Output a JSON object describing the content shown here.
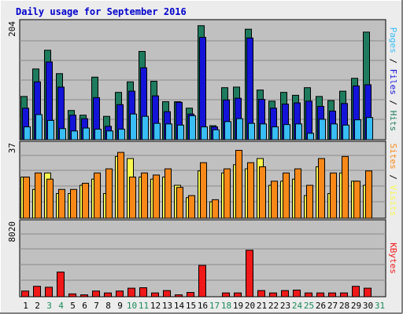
{
  "title": "Daily usage for September 2016",
  "colors": {
    "background": "#ececec",
    "panel": "#c0c0c0",
    "title_text": "#0000cc",
    "hits": "#1e7b5e",
    "files": "#1414d8",
    "pages": "#38bdf5",
    "visits": "#f8f850",
    "sites": "#f88818",
    "kbytes": "#f01818",
    "weekend_day": "#1a8a5a",
    "weekday": "#000000"
  },
  "chart_data": [
    {
      "type": "bar",
      "title": "",
      "xlabel": "",
      "ylabel": "Pages / Files / Hits",
      "ymax_label": "204",
      "ylim": [
        0,
        204
      ],
      "categories": [
        "1",
        "2",
        "3",
        "4",
        "5",
        "6",
        "7",
        "8",
        "9",
        "10",
        "11",
        "12",
        "13",
        "14",
        "15",
        "16",
        "17",
        "18",
        "19",
        "20",
        "21",
        "22",
        "23",
        "24",
        "25",
        "26",
        "27",
        "28",
        "29",
        "30",
        "31"
      ],
      "series": [
        {
          "name": "Hits",
          "color": "#1e7b5e",
          "values": [
            74,
            121,
            153,
            113,
            50,
            42,
            107,
            40,
            81,
            99,
            151,
            100,
            65,
            65,
            54,
            195,
            24,
            89,
            90,
            189,
            85,
            66,
            81,
            76,
            89,
            74,
            67,
            83,
            105,
            184,
            0
          ]
        },
        {
          "name": "Files",
          "color": "#1414d8",
          "values": [
            54,
            99,
            133,
            90,
            42,
            36,
            72,
            23,
            60,
            83,
            123,
            75,
            48,
            64,
            44,
            175,
            22,
            68,
            71,
            174,
            69,
            54,
            61,
            63,
            66,
            57,
            49,
            62,
            92,
            94,
            0
          ]
        },
        {
          "name": "Pages",
          "color": "#38bdf5",
          "values": [
            22,
            43,
            33,
            19,
            15,
            20,
            18,
            15,
            18,
            44,
            40,
            28,
            27,
            25,
            41,
            22,
            17,
            31,
            36,
            28,
            27,
            22,
            26,
            27,
            11,
            35,
            27,
            25,
            34,
            38,
            0
          ]
        }
      ]
    },
    {
      "type": "bar",
      "title": "",
      "xlabel": "",
      "ylabel": "Sites / Visits",
      "ymax_label": "37",
      "ylim": [
        0,
        37
      ],
      "categories": [
        "1",
        "2",
        "3",
        "4",
        "5",
        "6",
        "7",
        "8",
        "9",
        "10",
        "11",
        "12",
        "13",
        "14",
        "15",
        "16",
        "17",
        "18",
        "19",
        "20",
        "21",
        "22",
        "23",
        "24",
        "25",
        "26",
        "27",
        "28",
        "29",
        "30",
        "31"
      ],
      "series": [
        {
          "name": "Visits",
          "color": "#f8f850",
          "values": [
            20,
            14,
            22,
            12,
            12,
            16,
            19,
            12,
            30,
            29,
            20,
            19,
            20,
            16,
            10,
            23,
            8,
            22,
            26,
            24,
            29,
            16,
            18,
            19,
            11,
            25,
            12,
            22,
            18,
            16,
            0
          ]
        },
        {
          "name": "Sites",
          "color": "#f88818",
          "values": [
            20,
            22,
            19,
            14,
            14,
            17,
            22,
            24,
            32,
            20,
            22,
            21,
            24,
            15,
            11,
            27,
            9,
            24,
            33,
            27,
            25,
            18,
            22,
            24,
            16,
            29,
            22,
            30,
            18,
            23,
            0
          ]
        }
      ]
    },
    {
      "type": "bar",
      "title": "",
      "xlabel": "",
      "ylabel": "KBytes",
      "ymax_label": "8020",
      "ylim": [
        0,
        8020
      ],
      "categories": [
        "1",
        "2",
        "3",
        "4",
        "5",
        "6",
        "7",
        "8",
        "9",
        "10",
        "11",
        "12",
        "13",
        "14",
        "15",
        "16",
        "17",
        "18",
        "19",
        "20",
        "21",
        "22",
        "23",
        "24",
        "25",
        "26",
        "27",
        "28",
        "29",
        "30",
        "31"
      ],
      "series": [
        {
          "name": "KBytes",
          "color": "#f01818",
          "values": [
            600,
            1100,
            1000,
            2600,
            300,
            200,
            600,
            400,
            600,
            900,
            950,
            400,
            650,
            200,
            450,
            3300,
            0,
            400,
            400,
            4900,
            650,
            400,
            650,
            700,
            400,
            400,
            400,
            400,
            1100,
            900,
            0
          ]
        }
      ]
    }
  ],
  "day_labels": [
    "1",
    "2",
    "3",
    "4",
    "5",
    "6",
    "7",
    "8",
    "9",
    "10",
    "11",
    "12",
    "13",
    "14",
    "15",
    "16",
    "17",
    "18",
    "19",
    "20",
    "21",
    "22",
    "23",
    "24",
    "25",
    "26",
    "27",
    "28",
    "29",
    "30",
    "31"
  ],
  "weekend_days": [
    3,
    4,
    10,
    11,
    17,
    18,
    24,
    25,
    31
  ],
  "right_labels": {
    "top": [
      {
        "text": "Pages",
        "color": "#38bdf5"
      },
      {
        "text": " / ",
        "color": "#000000"
      },
      {
        "text": "Files",
        "color": "#1414d8"
      },
      {
        "text": " / ",
        "color": "#000000"
      },
      {
        "text": "Hits",
        "color": "#1e7b5e"
      }
    ],
    "middle": [
      {
        "text": "Sites",
        "color": "#f88818"
      },
      {
        "text": " / ",
        "color": "#000000"
      },
      {
        "text": "Visits",
        "color": "#f8f850"
      }
    ],
    "bottom": [
      {
        "text": "KBytes",
        "color": "#f01818"
      }
    ]
  }
}
